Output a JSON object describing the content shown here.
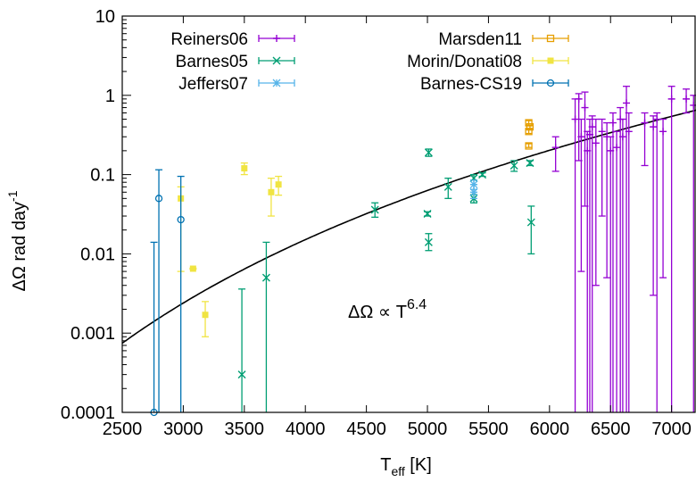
{
  "chart_data": {
    "type": "scatter",
    "xlabel_main": "T",
    "xlabel_sub": "eff",
    "xlabel_unit": " [K]",
    "ylabel_main": "ΔΩ rad day",
    "ylabel_sup": "-1",
    "annotation": {
      "main": "ΔΩ ∝ T",
      "sup": "6.4"
    },
    "xlim": [
      2500,
      7200
    ],
    "ylim": [
      0.0001,
      10
    ],
    "yscale": "log",
    "xticks": [
      2500,
      3000,
      3500,
      4000,
      4500,
      5000,
      5500,
      6000,
      6500,
      7000
    ],
    "yticks": [
      {
        "v": 0.0001,
        "label": "0.0001"
      },
      {
        "v": 0.001,
        "label": "0.001"
      },
      {
        "v": 0.01,
        "label": "0.01"
      },
      {
        "v": 0.1,
        "label": "0.1"
      },
      {
        "v": 1,
        "label": "1"
      },
      {
        "v": 10,
        "label": "10"
      }
    ],
    "fit": {
      "exponent": 6.4,
      "ref_x": 7200,
      "ref_y": 0.65,
      "color": "#000000"
    },
    "series": [
      {
        "name": "Reiners06",
        "color": "#9400d3",
        "marker": "plus",
        "points": [
          {
            "x": 6050,
            "y": 0.22,
            "lo": 0.11,
            "hi": 0.3
          },
          {
            "x": 6210,
            "y": 0.5,
            "lo": 0.0001,
            "hi": 0.9
          },
          {
            "x": 6240,
            "y": 0.9,
            "lo": 0.15,
            "hi": 1.05
          },
          {
            "x": 6260,
            "y": 0.3,
            "lo": 0.006,
            "hi": 0.5
          },
          {
            "x": 6290,
            "y": 0.7,
            "lo": 0.04,
            "hi": 1.1
          },
          {
            "x": 6310,
            "y": 0.2,
            "lo": 0.0001,
            "hi": 0.35
          },
          {
            "x": 6330,
            "y": 0.32,
            "lo": 0.0001,
            "hi": 0.5
          },
          {
            "x": 6350,
            "y": 0.4,
            "lo": 0.0001,
            "hi": 0.55
          },
          {
            "x": 6380,
            "y": 0.25,
            "lo": 0.004,
            "hi": 0.5
          },
          {
            "x": 6430,
            "y": 0.35,
            "lo": 0.03,
            "hi": 0.5
          },
          {
            "x": 6470,
            "y": 0.3,
            "lo": 0.005,
            "hi": 0.45
          },
          {
            "x": 6500,
            "y": 0.2,
            "lo": 0.0001,
            "hi": 0.3
          },
          {
            "x": 6520,
            "y": 0.45,
            "lo": 0.0001,
            "hi": 0.6
          },
          {
            "x": 6550,
            "y": 0.22,
            "lo": 0.0001,
            "hi": 0.35
          },
          {
            "x": 6580,
            "y": 0.5,
            "lo": 0.0001,
            "hi": 0.7
          },
          {
            "x": 6600,
            "y": 0.3,
            "lo": 0.0001,
            "hi": 0.5
          },
          {
            "x": 6630,
            "y": 0.8,
            "lo": 0.0001,
            "hi": 1.3
          },
          {
            "x": 6650,
            "y": 0.35,
            "lo": 0.0001,
            "hi": 0.6
          },
          {
            "x": 6780,
            "y": 0.45,
            "lo": 0.13,
            "hi": 0.6
          },
          {
            "x": 6850,
            "y": 0.4,
            "lo": 0.003,
            "hi": 0.55
          },
          {
            "x": 6880,
            "y": 0.5,
            "lo": 0.0001,
            "hi": 0.6
          },
          {
            "x": 6930,
            "y": 0.35,
            "lo": 0.005,
            "hi": 0.5
          },
          {
            "x": 7000,
            "y": 0.9,
            "lo": 0.0001,
            "hi": 1.3
          },
          {
            "x": 7120,
            "y": 0.9,
            "lo": 0.6,
            "hi": 1.2
          },
          {
            "x": 7180,
            "y": 0.75,
            "lo": 0.0001,
            "hi": 1.0
          }
        ]
      },
      {
        "name": "Barnes05",
        "color": "#009e73",
        "marker": "cross",
        "points": [
          {
            "x": 3480,
            "y": 0.0003,
            "lo": 0.0001,
            "hi": 0.0036
          },
          {
            "x": 3680,
            "y": 0.005,
            "lo": 0.0001,
            "hi": 0.014
          },
          {
            "x": 4570,
            "y": 0.036,
            "lo": 0.029,
            "hi": 0.044
          },
          {
            "x": 5000,
            "y": 0.032,
            "lo": 0.03,
            "hi": 0.034
          },
          {
            "x": 5010,
            "y": 0.014,
            "lo": 0.011,
            "hi": 0.018
          },
          {
            "x": 5010,
            "y": 0.19,
            "lo": 0.17,
            "hi": 0.21
          },
          {
            "x": 5170,
            "y": 0.07,
            "lo": 0.05,
            "hi": 0.09
          },
          {
            "x": 5380,
            "y": 0.05,
            "lo": 0.044,
            "hi": 0.056
          },
          {
            "x": 5380,
            "y": 0.09,
            "lo": 0.085,
            "hi": 0.1
          },
          {
            "x": 5450,
            "y": 0.1,
            "lo": 0.095,
            "hi": 0.105
          },
          {
            "x": 5710,
            "y": 0.13,
            "lo": 0.11,
            "hi": 0.15
          },
          {
            "x": 5840,
            "y": 0.14,
            "lo": 0.13,
            "hi": 0.15
          },
          {
            "x": 5850,
            "y": 0.025,
            "lo": 0.01,
            "hi": 0.04
          }
        ]
      },
      {
        "name": "Jeffers07",
        "color": "#56b4e9",
        "marker": "star",
        "points": [
          {
            "x": 5380,
            "y": 0.06,
            "lo": 0.05,
            "hi": 0.075
          },
          {
            "x": 5380,
            "y": 0.075,
            "lo": 0.065,
            "hi": 0.085
          }
        ]
      },
      {
        "name": "Marsden11",
        "color": "#e69f00",
        "marker": "square-open",
        "points": [
          {
            "x": 5830,
            "y": 0.23,
            "lo": 0.22,
            "hi": 0.245
          },
          {
            "x": 5830,
            "y": 0.35,
            "lo": 0.33,
            "hi": 0.37
          },
          {
            "x": 5830,
            "y": 0.45,
            "lo": 0.42,
            "hi": 0.48
          },
          {
            "x": 5840,
            "y": 0.4,
            "lo": 0.38,
            "hi": 0.42
          }
        ]
      },
      {
        "name": "Morin/Donati08",
        "color": "#f0e442",
        "marker": "square-filled",
        "points": [
          {
            "x": 2980,
            "y": 0.05,
            "lo": 0.006,
            "hi": 0.07
          },
          {
            "x": 3080,
            "y": 0.0065,
            "lo": 0.0064,
            "hi": 0.0066
          },
          {
            "x": 3180,
            "y": 0.0017,
            "lo": 0.0009,
            "hi": 0.0025
          },
          {
            "x": 3500,
            "y": 0.12,
            "lo": 0.1,
            "hi": 0.14
          },
          {
            "x": 3720,
            "y": 0.06,
            "lo": 0.03,
            "hi": 0.09
          },
          {
            "x": 3780,
            "y": 0.075,
            "lo": 0.055,
            "hi": 0.095
          }
        ]
      },
      {
        "name": "Barnes-CS19",
        "color": "#0072b2",
        "marker": "circle",
        "points": [
          {
            "x": 2760,
            "y": 0.0001,
            "lo": 0.0001,
            "hi": 0.014
          },
          {
            "x": 2800,
            "y": 0.05,
            "lo": 0.0001,
            "hi": 0.115
          },
          {
            "x": 2980,
            "y": 0.027,
            "lo": 0.0001,
            "hi": 0.095
          }
        ]
      }
    ],
    "legend_position": "top-left"
  }
}
